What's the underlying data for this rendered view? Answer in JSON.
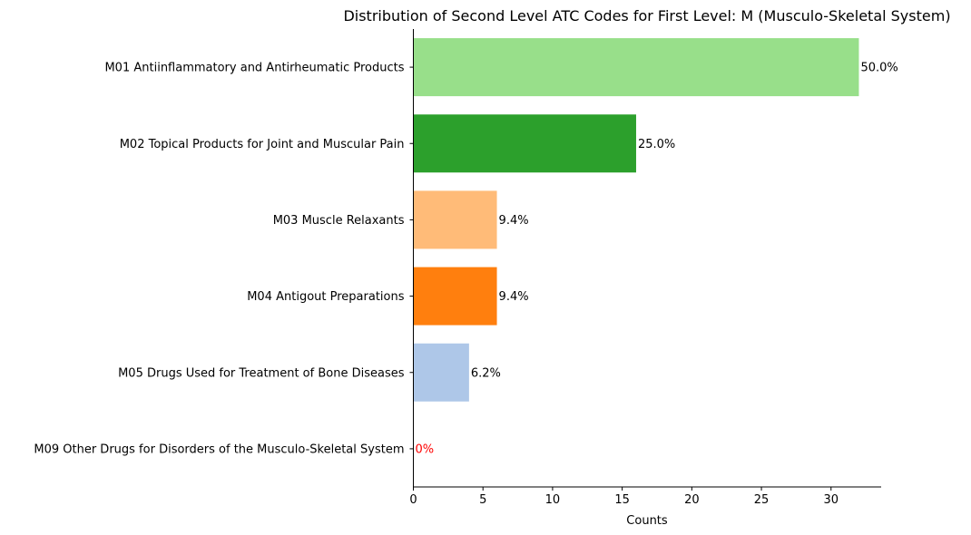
{
  "chart_data": {
    "type": "bar",
    "orientation": "horizontal",
    "title": "Distribution of Second Level ATC Codes for First Level: M (Musculo-Skeletal System)",
    "xlabel": "Counts",
    "ylabel": "",
    "xlim": [
      0,
      33.6
    ],
    "x_ticks": [
      0,
      5,
      10,
      15,
      20,
      25,
      30
    ],
    "grid": false,
    "categories": [
      "M01 Antiinflammatory and Antirheumatic Products",
      "M02 Topical Products for Joint and Muscular Pain",
      "M03 Muscle Relaxants",
      "M04 Antigout Preparations",
      "M05 Drugs Used for Treatment of Bone Diseases",
      "M09 Other Drugs for Disorders of the Musculo-Skeletal System"
    ],
    "values": [
      32,
      16,
      6,
      6,
      4,
      0
    ],
    "data_labels": [
      "50.0%",
      "25.0%",
      "9.4%",
      "9.4%",
      "6.2%",
      "0%"
    ],
    "colors": [
      "#98df8a",
      "#2ca02c",
      "#ffbb78",
      "#ff7f0e",
      "#aec7e8",
      "#1f77b4"
    ],
    "label_colors": [
      "#000000",
      "#000000",
      "#000000",
      "#000000",
      "#000000",
      "#ff0000"
    ]
  }
}
